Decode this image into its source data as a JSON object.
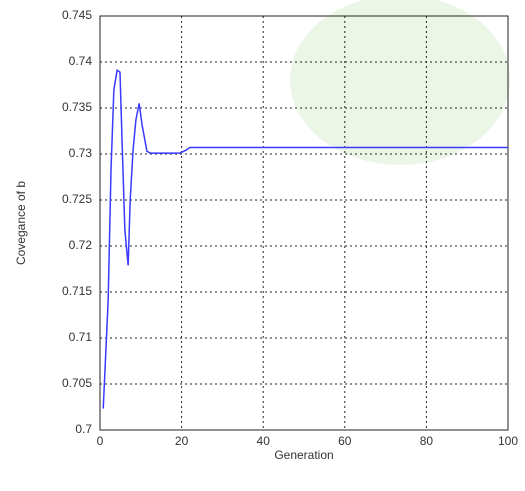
{
  "chart_data": {
    "type": "line",
    "xlabel": "Generation",
    "ylabel": "Covegance of b",
    "xlim": [
      0,
      100
    ],
    "xticks": [
      0,
      20,
      40,
      60,
      80,
      100
    ],
    "ylim": [
      0.7,
      0.745
    ],
    "yticks": [
      0.7,
      0.705,
      0.71,
      0.715,
      0.72,
      0.725,
      0.73,
      0.735,
      0.74,
      0.745
    ],
    "grid": true,
    "series": [
      {
        "color": "#3a3aff",
        "x": [
          0.7,
          0.8,
          1.5,
          2,
          2.7,
          3.4,
          4.2,
          4.9,
          5.4,
          6.1,
          6.9,
          7.4,
          8.1,
          8.8,
          9.6,
          10.3,
          11.5,
          12.3,
          19.6,
          21,
          22,
          100
        ],
        "values": [
          0.7024,
          0.7024,
          0.7092,
          0.7141,
          0.7283,
          0.737,
          0.7391,
          0.7389,
          0.7315,
          0.7217,
          0.7179,
          0.725,
          0.7304,
          0.7337,
          0.7355,
          0.7332,
          0.7303,
          0.7301,
          0.7301,
          0.7304,
          0.7307,
          0.7307
        ]
      }
    ]
  }
}
